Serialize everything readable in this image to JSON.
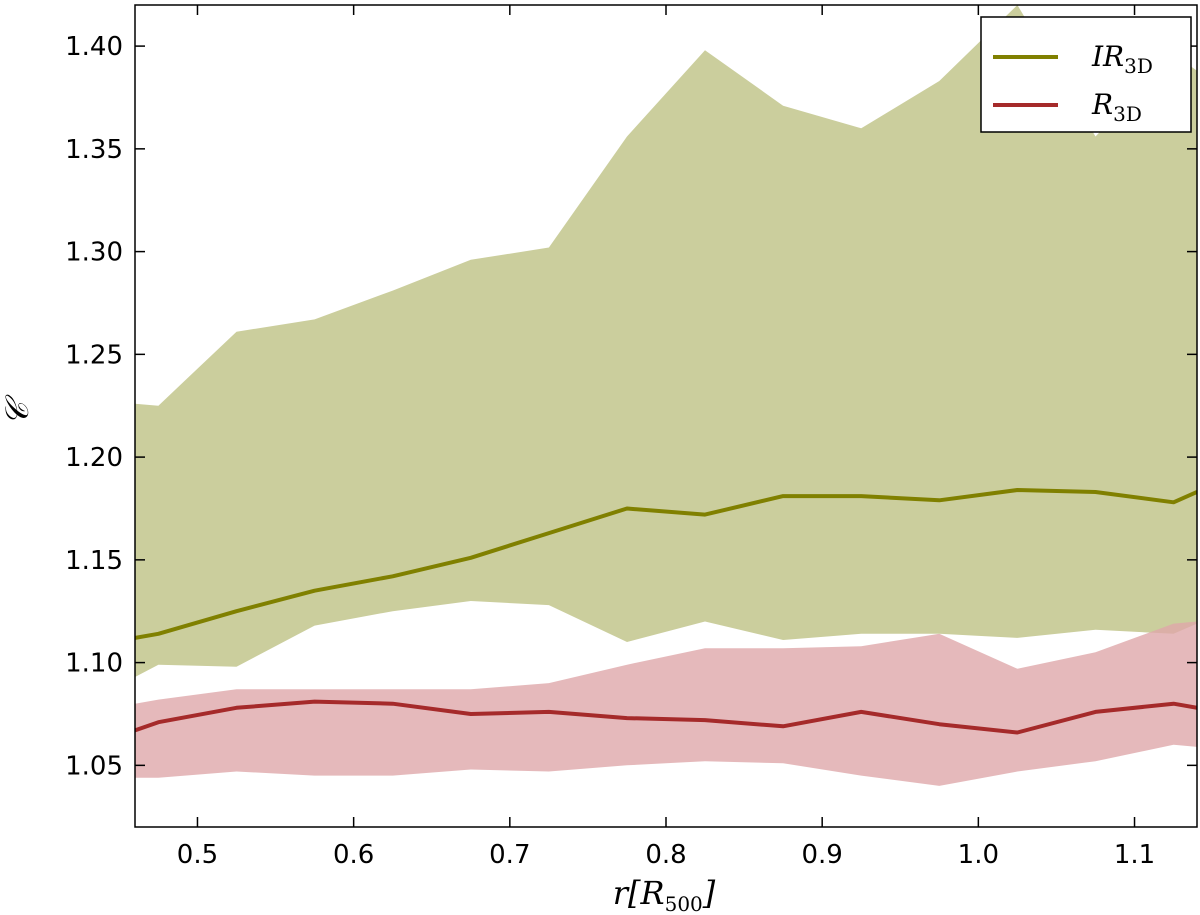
{
  "chart_data": {
    "type": "area",
    "title": "",
    "xlabel": "r[R",
    "xlabel_sub": "500",
    "xlabel_end": "]",
    "ylabel": "𝒞",
    "xlim": [
      0.46,
      1.14
    ],
    "ylim": [
      1.02,
      1.42
    ],
    "x_ticks": [
      "0.5",
      "0.6",
      "0.7",
      "0.8",
      "0.9",
      "1.0",
      "1.1"
    ],
    "y_ticks": [
      "1.05",
      "1.10",
      "1.15",
      "1.20",
      "1.25",
      "1.30",
      "1.35",
      "1.40"
    ],
    "grid": false,
    "legend_position": "top-right",
    "series": [
      {
        "name": "IR",
        "name_sub": "3D",
        "color": "#808000",
        "band_color": "#cbce9d",
        "x": [
          0.46,
          0.475,
          0.525,
          0.575,
          0.625,
          0.675,
          0.725,
          0.775,
          0.825,
          0.875,
          0.925,
          0.975,
          1.025,
          1.075,
          1.125,
          1.14
        ],
        "mean": [
          1.112,
          1.114,
          1.125,
          1.135,
          1.142,
          1.151,
          1.163,
          1.175,
          1.172,
          1.181,
          1.181,
          1.179,
          1.184,
          1.183,
          1.178,
          1.183
        ],
        "upper": [
          1.226,
          1.225,
          1.261,
          1.267,
          1.281,
          1.296,
          1.302,
          1.356,
          1.398,
          1.371,
          1.36,
          1.383,
          1.42,
          1.356,
          1.396,
          1.388
        ],
        "lower": [
          1.093,
          1.099,
          1.098,
          1.118,
          1.125,
          1.13,
          1.128,
          1.11,
          1.12,
          1.111,
          1.114,
          1.114,
          1.112,
          1.116,
          1.114,
          1.119
        ]
      },
      {
        "name": "R",
        "name_sub": "3D",
        "color": "#a52a2a",
        "band_color": "#dfa7aa",
        "x": [
          0.46,
          0.475,
          0.525,
          0.575,
          0.625,
          0.675,
          0.725,
          0.775,
          0.825,
          0.875,
          0.925,
          0.975,
          1.025,
          1.075,
          1.125,
          1.14
        ],
        "mean": [
          1.067,
          1.071,
          1.078,
          1.081,
          1.08,
          1.075,
          1.076,
          1.073,
          1.072,
          1.069,
          1.076,
          1.07,
          1.066,
          1.076,
          1.08,
          1.078
        ],
        "upper": [
          1.08,
          1.082,
          1.087,
          1.087,
          1.087,
          1.087,
          1.09,
          1.099,
          1.107,
          1.107,
          1.108,
          1.114,
          1.097,
          1.105,
          1.119,
          1.12
        ],
        "lower": [
          1.044,
          1.044,
          1.047,
          1.045,
          1.045,
          1.048,
          1.047,
          1.05,
          1.052,
          1.051,
          1.045,
          1.04,
          1.047,
          1.052,
          1.06,
          1.059
        ]
      }
    ]
  }
}
